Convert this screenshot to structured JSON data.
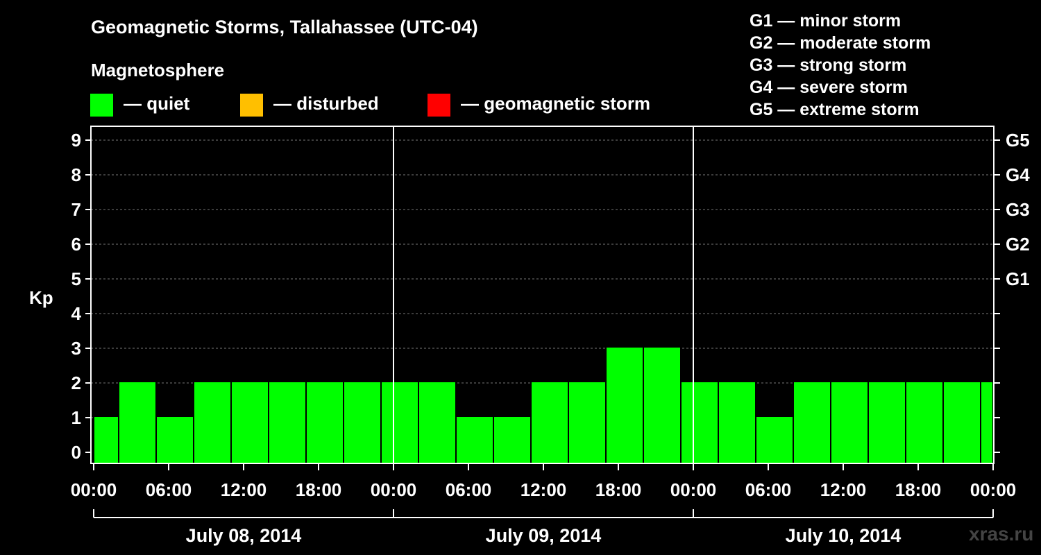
{
  "title": "Geomagnetic Storms, Tallahassee (UTC-04)",
  "subtitle": "Magnetosphere",
  "legend": [
    {
      "label": "— quiet",
      "color": "#00ff00"
    },
    {
      "label": "— disturbed",
      "color": "#ffbf00"
    },
    {
      "label": "— geomagnetic storm",
      "color": "#ff0000"
    }
  ],
  "storm_scale": [
    "G1 — minor storm",
    "G2 — moderate storm",
    "G3 — strong storm",
    "G4 — severe storm",
    "G5 — extreme storm"
  ],
  "watermark": "xras.ru",
  "chart_data": {
    "type": "bar",
    "ylabel": "Kp",
    "ylim": [
      0,
      9
    ],
    "y_ticks": [
      "0",
      "1",
      "2",
      "3",
      "4",
      "5",
      "6",
      "7",
      "8",
      "9"
    ],
    "right_axis_labels": [
      {
        "kp": 5,
        "label": "G1"
      },
      {
        "kp": 6,
        "label": "G2"
      },
      {
        "kp": 7,
        "label": "G3"
      },
      {
        "kp": 8,
        "label": "G4"
      },
      {
        "kp": 9,
        "label": "G5"
      }
    ],
    "x_range_hours": [
      0,
      72
    ],
    "x_ticks": [
      {
        "hour": 0,
        "label": "00:00"
      },
      {
        "hour": 6,
        "label": "06:00"
      },
      {
        "hour": 12,
        "label": "12:00"
      },
      {
        "hour": 18,
        "label": "18:00"
      },
      {
        "hour": 24,
        "label": "00:00"
      },
      {
        "hour": 30,
        "label": "06:00"
      },
      {
        "hour": 36,
        "label": "12:00"
      },
      {
        "hour": 42,
        "label": "18:00"
      },
      {
        "hour": 48,
        "label": "00:00"
      },
      {
        "hour": 54,
        "label": "06:00"
      },
      {
        "hour": 60,
        "label": "12:00"
      },
      {
        "hour": 66,
        "label": "18:00"
      },
      {
        "hour": 72,
        "label": "00:00"
      }
    ],
    "days": [
      "July 08, 2014",
      "July 09, 2014",
      "July 10, 2014"
    ],
    "grid": "dashed horizontal",
    "bars": [
      {
        "start": 0,
        "end": 2,
        "kp": 1
      },
      {
        "start": 2,
        "end": 5,
        "kp": 2
      },
      {
        "start": 5,
        "end": 8,
        "kp": 1
      },
      {
        "start": 8,
        "end": 11,
        "kp": 2
      },
      {
        "start": 11,
        "end": 14,
        "kp": 2
      },
      {
        "start": 14,
        "end": 17,
        "kp": 2
      },
      {
        "start": 17,
        "end": 20,
        "kp": 2
      },
      {
        "start": 20,
        "end": 23,
        "kp": 2
      },
      {
        "start": 23,
        "end": 26,
        "kp": 2
      },
      {
        "start": 26,
        "end": 29,
        "kp": 2
      },
      {
        "start": 29,
        "end": 32,
        "kp": 1
      },
      {
        "start": 32,
        "end": 35,
        "kp": 1
      },
      {
        "start": 35,
        "end": 38,
        "kp": 2
      },
      {
        "start": 38,
        "end": 41,
        "kp": 2
      },
      {
        "start": 41,
        "end": 44,
        "kp": 3
      },
      {
        "start": 44,
        "end": 47,
        "kp": 3
      },
      {
        "start": 47,
        "end": 50,
        "kp": 2
      },
      {
        "start": 50,
        "end": 53,
        "kp": 2
      },
      {
        "start": 53,
        "end": 56,
        "kp": 1
      },
      {
        "start": 56,
        "end": 59,
        "kp": 2
      },
      {
        "start": 59,
        "end": 62,
        "kp": 2
      },
      {
        "start": 62,
        "end": 65,
        "kp": 2
      },
      {
        "start": 65,
        "end": 68,
        "kp": 2
      },
      {
        "start": 68,
        "end": 71,
        "kp": 2
      },
      {
        "start": 71,
        "end": 72,
        "kp": 2
      }
    ]
  }
}
